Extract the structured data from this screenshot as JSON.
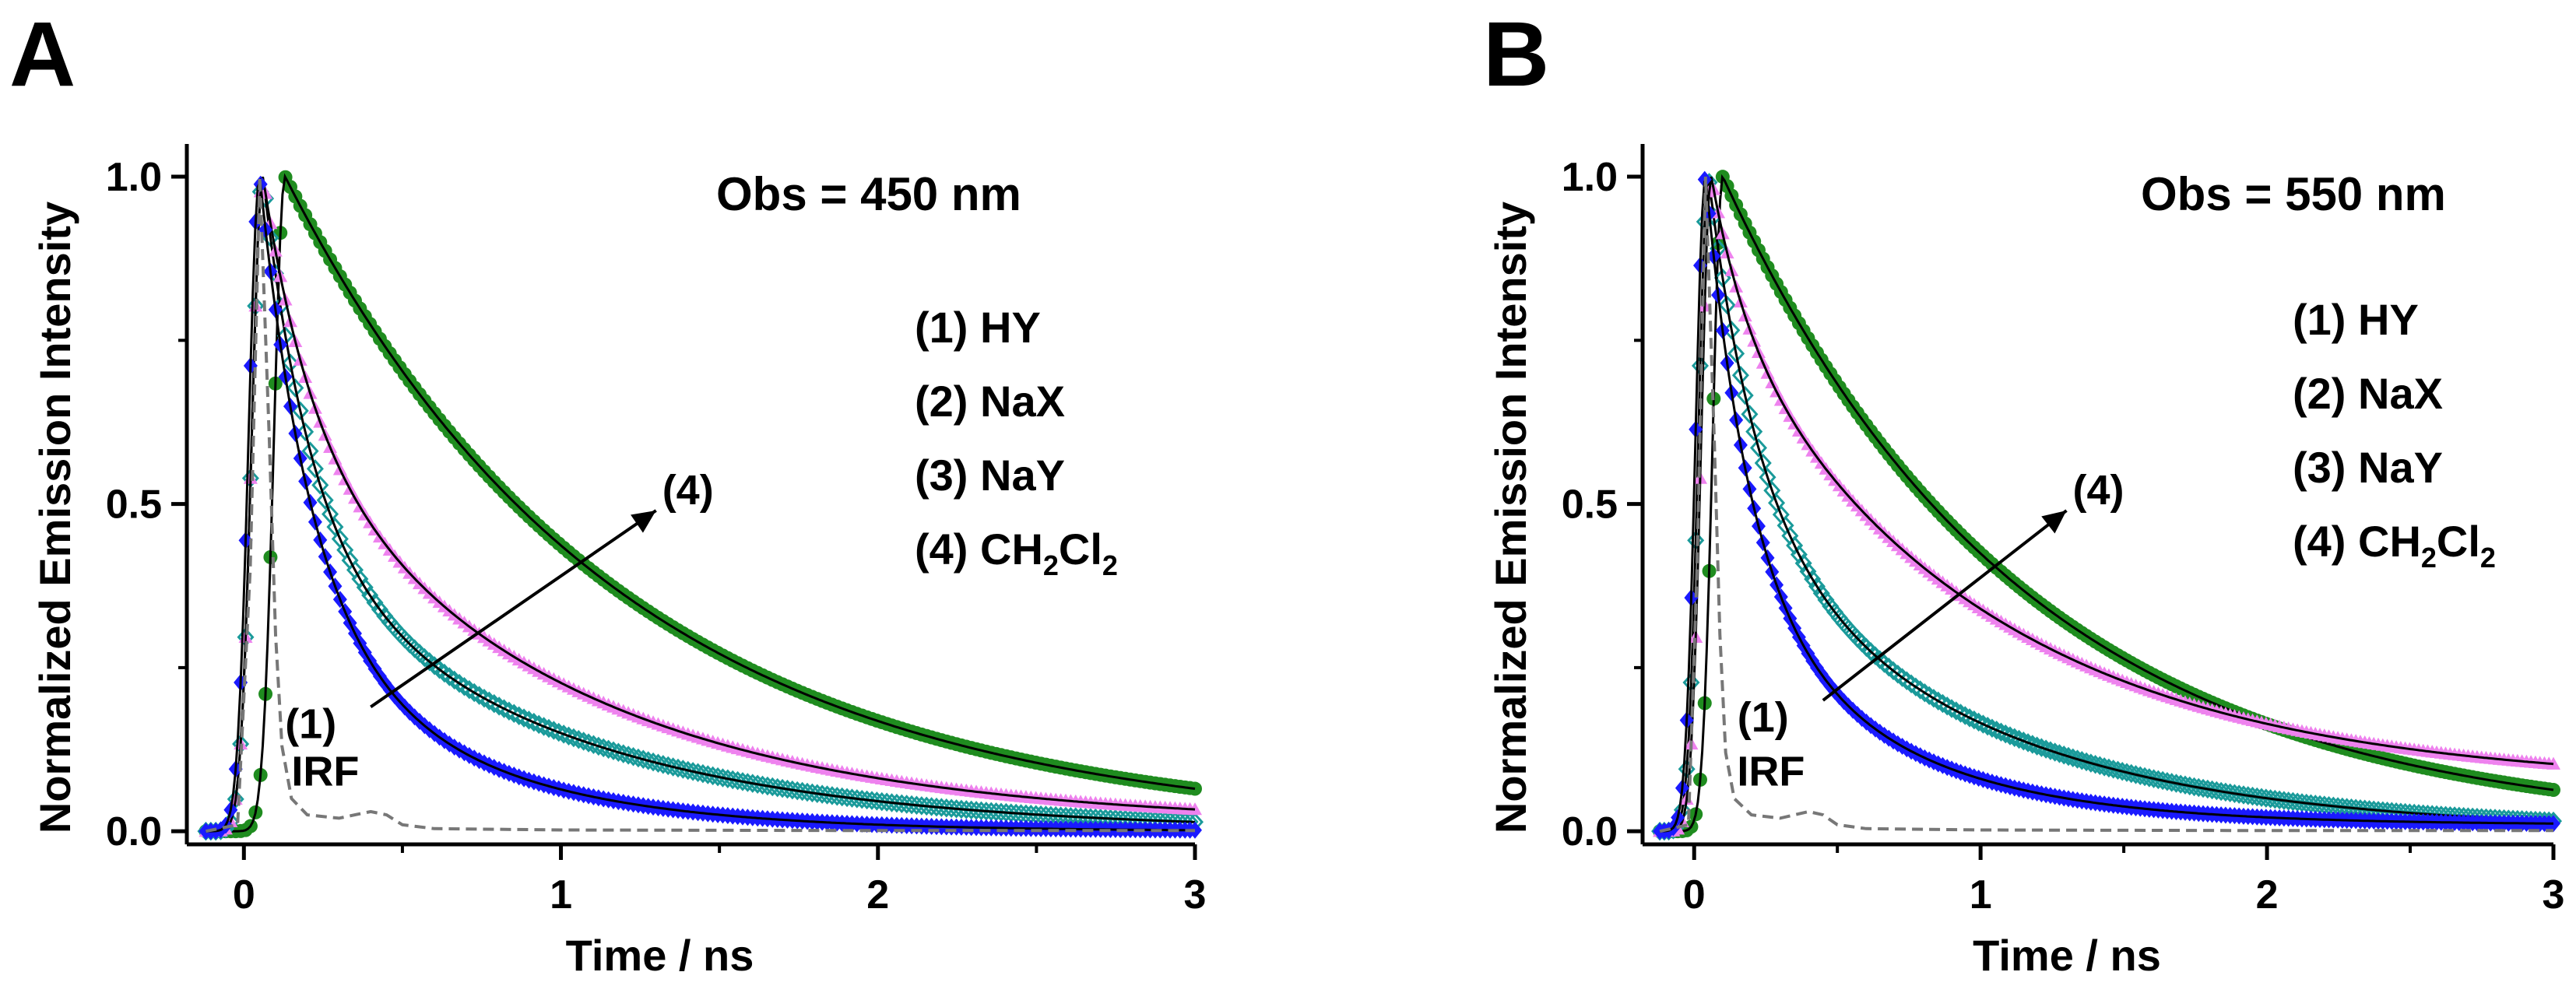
{
  "chart_data": [
    {
      "type": "scatter",
      "panel_label": "A",
      "title": "Obs = 450 nm",
      "xlabel": "Time / ns",
      "ylabel": "Normalized Emission Intensity",
      "xlim": [
        -0.18,
        3.0
      ],
      "ylim": [
        -0.02,
        1.05
      ],
      "xticks": [
        0,
        1,
        2,
        3
      ],
      "xtick_labels": [
        "0",
        "1",
        "2",
        "3"
      ],
      "yticks": [
        0.0,
        0.5,
        1.0
      ],
      "ytick_labels": [
        "0.0",
        "0.5",
        "1.0"
      ],
      "legend": {
        "placement": "top-right",
        "entries": [
          {
            "num": "(1)",
            "label": "HY"
          },
          {
            "num": "(2)",
            "label": "NaX"
          },
          {
            "num": "(3)",
            "label": "NaY"
          },
          {
            "num": "(4)",
            "label": "CH",
            "sub1": "2",
            "mid": "Cl",
            "sub2": "2"
          }
        ]
      },
      "annotations": {
        "start": "(1)",
        "end": "(4)",
        "irf": "IRF",
        "arrow_from": [
          0.4,
          0.19
        ],
        "arrow_to": [
          1.3,
          0.49
        ]
      },
      "series": [
        {
          "name": "(1) HY",
          "color": "#1a1aff",
          "marker": "filled-diamond",
          "peak_t": 0.05,
          "decay": [
            {
              "a": 0.65,
              "tau": 0.16
            },
            {
              "a": 0.35,
              "tau": 0.55
            }
          ],
          "offset": 0.0
        },
        {
          "name": "(2) NaX",
          "color": "#ee82ee",
          "marker": "filled-triangle",
          "peak_t": 0.06,
          "decay": [
            {
              "a": 0.38,
              "tau": 0.15
            },
            {
              "a": 0.62,
              "tau": 0.9
            }
          ],
          "offset": 0.01
        },
        {
          "name": "(3) NaY",
          "color": "#1a9a9a",
          "marker": "open-diamond",
          "peak_t": 0.06,
          "decay": [
            {
              "a": 0.55,
              "tau": 0.15
            },
            {
              "a": 0.45,
              "tau": 0.85
            }
          ],
          "offset": 0.0
        },
        {
          "name": "(4) CH2Cl2",
          "color": "#1f8c1f",
          "marker": "filled-circle",
          "peak_t": 0.13,
          "decay": [
            {
              "a": 1.0,
              "tau": 1.05
            }
          ],
          "offset": 0.0
        },
        {
          "name": "IRF",
          "color": "#777777",
          "marker": "dashed-line",
          "points": [
            [
              -0.12,
              0.0
            ],
            [
              -0.02,
              0.01
            ],
            [
              0.02,
              0.4
            ],
            [
              0.05,
              1.0
            ],
            [
              0.08,
              0.6
            ],
            [
              0.1,
              0.3
            ],
            [
              0.12,
              0.13
            ],
            [
              0.15,
              0.05
            ],
            [
              0.2,
              0.025
            ],
            [
              0.3,
              0.02
            ],
            [
              0.35,
              0.025
            ],
            [
              0.4,
              0.03
            ],
            [
              0.45,
              0.025
            ],
            [
              0.5,
              0.01
            ],
            [
              0.6,
              0.004
            ],
            [
              1.0,
              0.002
            ],
            [
              2.0,
              0.001
            ],
            [
              3.0,
              0.001
            ]
          ]
        }
      ]
    },
    {
      "type": "scatter",
      "panel_label": "B",
      "title": "Obs = 550 nm",
      "xlabel": "Time / ns",
      "ylabel": "Normalized Emission Intensity",
      "xlim": [
        -0.18,
        3.0
      ],
      "ylim": [
        -0.02,
        1.05
      ],
      "xticks": [
        0,
        1,
        2,
        3
      ],
      "xtick_labels": [
        "0",
        "1",
        "2",
        "3"
      ],
      "yticks": [
        0.0,
        0.5,
        1.0
      ],
      "ytick_labels": [
        "0.0",
        "0.5",
        "1.0"
      ],
      "legend": {
        "placement": "top-right",
        "entries": [
          {
            "num": "(1)",
            "label": "HY"
          },
          {
            "num": "(2)",
            "label": "NaX"
          },
          {
            "num": "(3)",
            "label": "NaY"
          },
          {
            "num": "(4)",
            "label": "CH",
            "sub1": "2",
            "mid": "Cl",
            "sub2": "2"
          }
        ]
      },
      "annotations": {
        "start": "(1)",
        "end": "(4)",
        "irf": "IRF",
        "arrow_from": [
          0.45,
          0.2
        ],
        "arrow_to": [
          1.3,
          0.49
        ]
      },
      "series": [
        {
          "name": "(1) HY",
          "color": "#1a1aff",
          "marker": "filled-diamond",
          "peak_t": 0.04,
          "decay": [
            {
              "a": 0.6,
              "tau": 0.15
            },
            {
              "a": 0.4,
              "tau": 0.55
            }
          ],
          "offset": 0.01
        },
        {
          "name": "(2) NaX",
          "color": "#ee82ee",
          "marker": "filled-triangle",
          "peak_t": 0.06,
          "decay": [
            {
              "a": 0.22,
              "tau": 0.12
            },
            {
              "a": 0.78,
              "tau": 0.95
            }
          ],
          "offset": 0.07
        },
        {
          "name": "(3) NaY",
          "color": "#1a9a9a",
          "marker": "open-diamond",
          "peak_t": 0.05,
          "decay": [
            {
              "a": 0.5,
              "tau": 0.17
            },
            {
              "a": 0.5,
              "tau": 0.85
            }
          ],
          "offset": 0.0
        },
        {
          "name": "(4) CH2Cl2",
          "color": "#1f8c1f",
          "marker": "filled-circle",
          "peak_t": 0.1,
          "decay": [
            {
              "a": 1.0,
              "tau": 1.05
            }
          ],
          "offset": 0.0
        },
        {
          "name": "IRF",
          "color": "#777777",
          "marker": "dashed-line",
          "points": [
            [
              -0.12,
              0.0
            ],
            [
              -0.02,
              0.01
            ],
            [
              0.01,
              0.4
            ],
            [
              0.04,
              1.0
            ],
            [
              0.07,
              0.6
            ],
            [
              0.09,
              0.3
            ],
            [
              0.11,
              0.12
            ],
            [
              0.14,
              0.05
            ],
            [
              0.2,
              0.025
            ],
            [
              0.3,
              0.02
            ],
            [
              0.35,
              0.025
            ],
            [
              0.4,
              0.03
            ],
            [
              0.45,
              0.025
            ],
            [
              0.5,
              0.01
            ],
            [
              0.6,
              0.004
            ],
            [
              1.0,
              0.002
            ],
            [
              2.0,
              0.001
            ],
            [
              3.0,
              0.001
            ]
          ]
        }
      ]
    }
  ]
}
